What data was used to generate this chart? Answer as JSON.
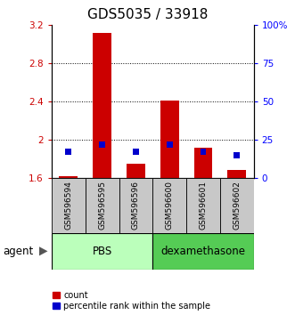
{
  "title": "GDS5035 / 33918",
  "samples": [
    "GSM596594",
    "GSM596595",
    "GSM596596",
    "GSM596600",
    "GSM596601",
    "GSM596602"
  ],
  "count_values": [
    1.62,
    3.12,
    1.75,
    2.41,
    1.92,
    1.68
  ],
  "percentile_values": [
    17,
    22,
    17,
    22,
    17,
    15
  ],
  "ylim_left": [
    1.6,
    3.2
  ],
  "ylim_right": [
    0,
    100
  ],
  "yticks_left": [
    1.6,
    2.0,
    2.4,
    2.8,
    3.2
  ],
  "yticks_right": [
    0,
    25,
    50,
    75,
    100
  ],
  "ytick_labels_left": [
    "1.6",
    "2",
    "2.4",
    "2.8",
    "3.2"
  ],
  "ytick_labels_right": [
    "0",
    "25",
    "50",
    "75",
    "100%"
  ],
  "count_base": 1.6,
  "count_color": "#CC0000",
  "percentile_color": "#0000CC",
  "bg_sample": "#C8C8C8",
  "pbs_color": "#BBFFBB",
  "dexa_color": "#55CC55",
  "title_fontsize": 11,
  "tick_fontsize": 7.5,
  "sample_fontsize": 6.5,
  "group_fontsize": 8.5,
  "legend_fontsize": 7,
  "agent_fontsize": 8.5
}
